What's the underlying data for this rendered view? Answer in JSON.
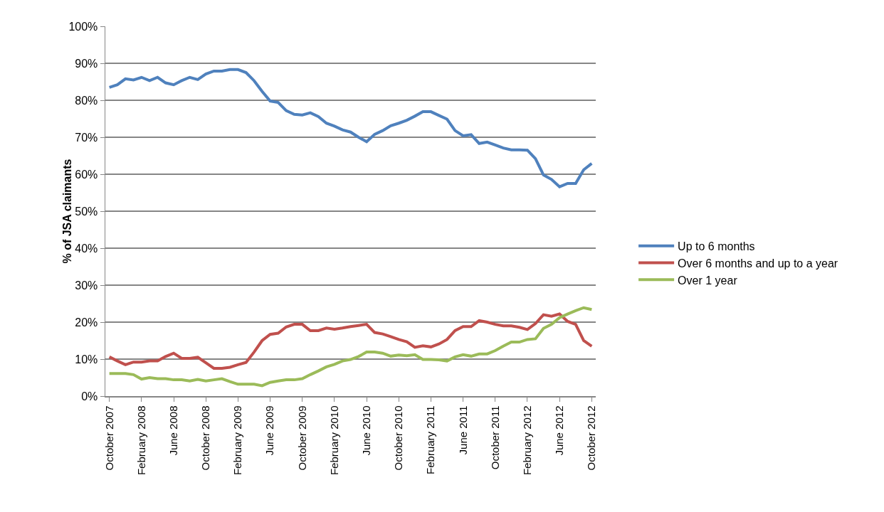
{
  "chart_data": {
    "type": "line",
    "ylabel": "% of JSA claimants",
    "categories": [
      "October 2007",
      null,
      null,
      null,
      "February 2008",
      null,
      null,
      null,
      "June 2008",
      null,
      null,
      null,
      "October 2008",
      null,
      null,
      null,
      "February 2009",
      null,
      null,
      null,
      "June 2009",
      null,
      null,
      null,
      "October 2009",
      null,
      null,
      null,
      "February 2010",
      null,
      null,
      null,
      "June 2010",
      null,
      null,
      null,
      "October 2010",
      null,
      null,
      null,
      "February 2011",
      null,
      null,
      null,
      "June 2011",
      null,
      null,
      null,
      "October 2011",
      null,
      null,
      null,
      "February 2012",
      null,
      null,
      null,
      "June 2012",
      null,
      null,
      null,
      "October 2012"
    ],
    "series": [
      {
        "name": "Up to 6 months",
        "color": "#4f81bd",
        "values": [
          83.5,
          84.2,
          85.8,
          85.5,
          86.2,
          85.3,
          86.2,
          84.7,
          84.2,
          85.3,
          86.2,
          85.6,
          87.1,
          87.9,
          87.9,
          88.3,
          88.3,
          87.5,
          85.3,
          82.4,
          79.8,
          79.4,
          77.2,
          76.2,
          76.0,
          76.6,
          75.6,
          73.8,
          73.0,
          72.0,
          71.4,
          70.0,
          68.8,
          70.8,
          71.8,
          73.1,
          73.8,
          74.6,
          75.7,
          76.9,
          76.9,
          75.9,
          74.9,
          71.8,
          70.4,
          70.7,
          68.3,
          68.7,
          67.9,
          67.1,
          66.6,
          66.6,
          66.5,
          64.2,
          59.8,
          58.6,
          56.6,
          57.5,
          57.5,
          61.2,
          62.9
        ]
      },
      {
        "name": "Over 6 months and up to a year",
        "color": "#c0504d",
        "values": [
          10.6,
          9.5,
          8.5,
          9.2,
          9.2,
          9.5,
          9.5,
          10.7,
          11.6,
          10.2,
          10.2,
          10.5,
          9.0,
          7.5,
          7.5,
          7.8,
          8.5,
          9.1,
          11.9,
          15.0,
          16.7,
          17.0,
          18.7,
          19.4,
          19.4,
          17.7,
          17.7,
          18.4,
          18.1,
          18.4,
          18.8,
          19.1,
          19.4,
          17.2,
          16.8,
          16.1,
          15.3,
          14.7,
          13.2,
          13.6,
          13.3,
          14.1,
          15.3,
          17.7,
          18.8,
          18.8,
          20.4,
          20.0,
          19.4,
          19.0,
          19.0,
          18.6,
          18.0,
          19.6,
          22.0,
          21.6,
          22.2,
          20.2,
          19.4,
          15.0,
          13.5
        ]
      },
      {
        "name": "Over 1 year",
        "color": "#9bbb59",
        "values": [
          6.1,
          6.1,
          6.1,
          5.8,
          4.6,
          5.0,
          4.7,
          4.7,
          4.4,
          4.4,
          4.1,
          4.5,
          4.1,
          4.4,
          4.7,
          3.9,
          3.2,
          3.2,
          3.2,
          2.8,
          3.7,
          4.1,
          4.4,
          4.4,
          4.7,
          5.8,
          6.8,
          7.9,
          8.6,
          9.5,
          9.9,
          10.7,
          11.9,
          11.9,
          11.6,
          10.8,
          11.1,
          10.9,
          11.2,
          9.9,
          9.9,
          9.8,
          9.5,
          10.6,
          11.2,
          10.8,
          11.4,
          11.4,
          12.3,
          13.5,
          14.6,
          14.6,
          15.3,
          15.5,
          18.3,
          19.4,
          21.2,
          22.2,
          23.1,
          23.9,
          23.4
        ]
      }
    ],
    "ylim": [
      0,
      100
    ],
    "yticks": [
      {
        "value": 0,
        "label": "0%"
      },
      {
        "value": 10,
        "label": "10%"
      },
      {
        "value": 20,
        "label": "20%"
      },
      {
        "value": 30,
        "label": "30%"
      },
      {
        "value": 40,
        "label": "40%"
      },
      {
        "value": 50,
        "label": "50%"
      },
      {
        "value": 60,
        "label": "60%"
      },
      {
        "value": 70,
        "label": "70%"
      },
      {
        "value": 80,
        "label": "80%"
      },
      {
        "value": 90,
        "label": "90%"
      },
      {
        "value": 100,
        "label": "100%"
      }
    ],
    "grid": "y",
    "legend": "right",
    "marker": "none",
    "line_style": "solid"
  }
}
